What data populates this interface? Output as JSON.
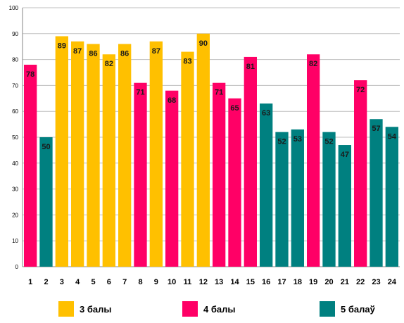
{
  "chart_data": {
    "type": "bar",
    "categories": [
      "1",
      "2",
      "3",
      "4",
      "5",
      "6",
      "7",
      "8",
      "9",
      "10",
      "11",
      "12",
      "13",
      "14",
      "15",
      "16",
      "17",
      "18",
      "19",
      "20",
      "21",
      "22",
      "23",
      "24"
    ],
    "values": [
      78,
      50,
      89,
      87,
      86,
      82,
      86,
      71,
      87,
      68,
      83,
      90,
      71,
      65,
      81,
      63,
      52,
      53,
      82,
      52,
      47,
      72,
      57,
      54
    ],
    "groups": [
      "4 балы",
      "5 балаў",
      "3 балы",
      "3 балы",
      "3 балы",
      "3 балы",
      "3 балы",
      "4 балы",
      "3 балы",
      "4 балы",
      "3 балы",
      "3 балы",
      "4 балы",
      "4 балы",
      "4 балы",
      "5 балаў",
      "5 балаў",
      "5 балаў",
      "4 балы",
      "5 балаў",
      "5 балаў",
      "4 балы",
      "5 балаў",
      "5 балаў"
    ],
    "ylim": [
      0,
      100
    ],
    "yticks": [
      0,
      10,
      20,
      30,
      40,
      50,
      60,
      70,
      80,
      90,
      100
    ],
    "grid": true,
    "legend_position": "bottom",
    "legend": [
      {
        "name": "3 балы",
        "color": "#FFC000"
      },
      {
        "name": "4 балы",
        "color": "#FF0066"
      },
      {
        "name": "5 балаў",
        "color": "#008080"
      }
    ]
  }
}
